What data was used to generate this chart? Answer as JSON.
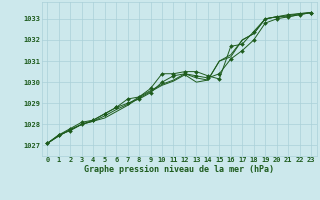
{
  "xlabel": "Graphe pression niveau de la mer (hPa)",
  "ylim": [
    1026.5,
    1033.8
  ],
  "xlim": [
    -0.5,
    23.5
  ],
  "xticks": [
    0,
    1,
    2,
    3,
    4,
    5,
    6,
    7,
    8,
    9,
    10,
    11,
    12,
    13,
    14,
    15,
    16,
    17,
    18,
    19,
    20,
    21,
    22,
    23
  ],
  "yticks": [
    1027,
    1028,
    1029,
    1030,
    1031,
    1032,
    1033
  ],
  "bg_color": "#cce8ec",
  "grid_color": "#aad0d8",
  "line_color": "#1e5c1e",
  "series": [
    [
      1027.1,
      1027.5,
      1027.8,
      1028.1,
      1028.2,
      1028.5,
      1028.8,
      1029.0,
      1029.2,
      1029.5,
      1030.0,
      1030.3,
      1030.4,
      1030.3,
      1030.2,
      1030.4,
      1031.1,
      1031.5,
      1032.0,
      1032.8,
      1033.0,
      1033.1,
      1033.2,
      1033.3
    ],
    [
      1027.1,
      1027.5,
      1027.7,
      1028.0,
      1028.2,
      1028.5,
      1028.8,
      1029.2,
      1029.3,
      1029.7,
      1030.4,
      1030.4,
      1030.5,
      1030.5,
      1030.3,
      1030.15,
      1031.7,
      1031.8,
      1032.4,
      1033.0,
      1033.1,
      1033.2,
      1033.25,
      1033.3
    ],
    [
      1027.1,
      1027.45,
      1027.75,
      1028.0,
      1028.15,
      1028.3,
      1028.6,
      1028.9,
      1029.25,
      1029.55,
      1029.85,
      1030.05,
      1030.35,
      1030.0,
      1030.1,
      1031.0,
      1031.3,
      1032.0,
      1032.3,
      1033.0,
      1033.1,
      1033.15,
      1033.25,
      1033.3
    ],
    [
      1027.1,
      1027.45,
      1027.75,
      1028.0,
      1028.15,
      1028.4,
      1028.7,
      1028.95,
      1029.3,
      1029.6,
      1029.9,
      1030.1,
      1030.4,
      1030.2,
      1030.1,
      1031.0,
      1031.2,
      1032.0,
      1032.3,
      1033.0,
      1033.1,
      1033.1,
      1033.2,
      1033.3
    ]
  ],
  "has_markers": [
    true,
    true,
    false,
    false
  ],
  "tick_fontsize": 5.0,
  "xlabel_fontsize": 6.0
}
